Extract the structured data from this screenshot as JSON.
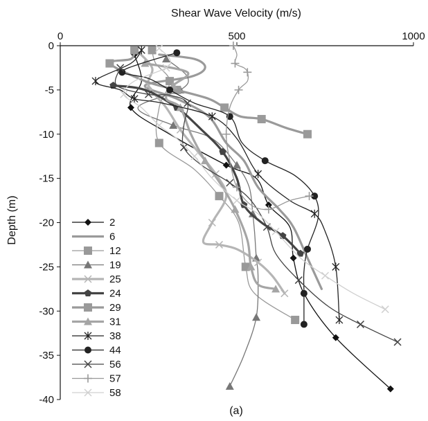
{
  "chart_data": {
    "type": "line",
    "xlabel": "Shear Wave Velocity (m/s)",
    "ylabel": "Depth (m)",
    "caption": "(a)",
    "xlim": [
      0,
      1000
    ],
    "ylim": [
      -40,
      0
    ],
    "xticks": [
      "0",
      "500",
      "1000"
    ],
    "yticks": [
      "0",
      "-5",
      "-10",
      "-15",
      "-20",
      "-25",
      "-30",
      "-35",
      "-40"
    ],
    "series": [
      {
        "name": "2",
        "color": "#111111",
        "marker": "diamond",
        "points": [
          [
            210,
            -1
          ],
          [
            230,
            -4
          ],
          [
            200,
            -7
          ],
          [
            310,
            -10
          ],
          [
            470,
            -13.5
          ],
          [
            555,
            -15
          ],
          [
            590,
            -18
          ],
          [
            650,
            -20.5
          ],
          [
            660,
            -24
          ],
          [
            690,
            -28
          ],
          [
            780,
            -33
          ],
          [
            935,
            -38.8
          ]
        ]
      },
      {
        "name": "6",
        "color": "#9a9a9a",
        "marker": "none",
        "thick": true,
        "points": [
          [
            280,
            -1
          ],
          [
            380,
            -1.5
          ],
          [
            410,
            -2.5
          ],
          [
            370,
            -3.5
          ],
          [
            240,
            -4.5
          ],
          [
            330,
            -6
          ],
          [
            420,
            -8
          ],
          [
            470,
            -11
          ],
          [
            520,
            -13
          ],
          [
            560,
            -16
          ],
          [
            620,
            -18.5
          ],
          [
            660,
            -20.5
          ],
          [
            700,
            -24
          ],
          [
            740,
            -27.5
          ]
        ]
      },
      {
        "name": "12",
        "color": "#999999",
        "marker": "square",
        "points": [
          [
            260,
            -0.5
          ],
          [
            270,
            -2
          ],
          [
            310,
            -4
          ],
          [
            280,
            -7
          ],
          [
            280,
            -11
          ],
          [
            380,
            -14
          ],
          [
            450,
            -17
          ],
          [
            505,
            -20
          ],
          [
            525,
            -25
          ],
          [
            550,
            -28
          ],
          [
            665,
            -31
          ]
        ]
      },
      {
        "name": "19",
        "color": "#777777",
        "marker": "triangle",
        "points": [
          [
            300,
            -1.5
          ],
          [
            360,
            -3.5
          ],
          [
            340,
            -5
          ],
          [
            220,
            -7
          ],
          [
            320,
            -9
          ],
          [
            430,
            -10.5
          ],
          [
            500,
            -13.5
          ],
          [
            535,
            -16
          ],
          [
            545,
            -19
          ],
          [
            550,
            -21
          ],
          [
            555,
            -24
          ],
          [
            560,
            -26
          ],
          [
            555,
            -30.7
          ],
          [
            520,
            -35
          ],
          [
            480,
            -38.5
          ]
        ]
      },
      {
        "name": "25",
        "color": "#b5b5b5",
        "marker": "x",
        "thick": true,
        "points": [
          [
            215,
            -0.5
          ],
          [
            260,
            -2.5
          ],
          [
            250,
            -4.5
          ],
          [
            300,
            -7
          ],
          [
            340,
            -9.5
          ],
          [
            390,
            -12
          ],
          [
            440,
            -14.5
          ],
          [
            470,
            -17
          ],
          [
            430,
            -20
          ],
          [
            405,
            -22.2
          ],
          [
            450,
            -22.5
          ],
          [
            500,
            -23
          ],
          [
            560,
            -24.5
          ],
          [
            600,
            -26
          ],
          [
            635,
            -28
          ]
        ]
      },
      {
        "name": "24",
        "color": "#444444",
        "marker": "pentagon",
        "thick": true,
        "points": [
          [
            150,
            -4.5
          ],
          [
            240,
            -5
          ],
          [
            330,
            -7
          ],
          [
            400,
            -9.5
          ],
          [
            460,
            -12
          ],
          [
            500,
            -15
          ],
          [
            520,
            -18
          ],
          [
            570,
            -20
          ],
          [
            630,
            -21.5
          ],
          [
            680,
            -23.5
          ]
        ]
      },
      {
        "name": "29",
        "color": "#9a9a9a",
        "marker": "square",
        "thick": true,
        "points": [
          [
            210,
            -0.5
          ],
          [
            200,
            -1.5
          ],
          [
            140,
            -2
          ],
          [
            240,
            -4
          ],
          [
            330,
            -5
          ],
          [
            420,
            -6
          ],
          [
            465,
            -7
          ],
          [
            510,
            -8
          ],
          [
            570,
            -8.3
          ],
          [
            640,
            -9.3
          ],
          [
            700,
            -10
          ]
        ]
      },
      {
        "name": "31",
        "color": "#a5a5a5",
        "marker": "triangle",
        "thick": true,
        "points": [
          [
            240,
            -2
          ],
          [
            360,
            -3
          ],
          [
            320,
            -4.5
          ],
          [
            300,
            -6
          ],
          [
            340,
            -7
          ],
          [
            370,
            -10
          ],
          [
            410,
            -13
          ],
          [
            460,
            -16
          ],
          [
            495,
            -18.5
          ],
          [
            530,
            -22
          ],
          [
            540,
            -25
          ],
          [
            560,
            -27
          ],
          [
            610,
            -27.5
          ]
        ]
      },
      {
        "name": "38",
        "color": "#222222",
        "marker": "star",
        "points": [
          [
            230,
            -0.5
          ],
          [
            200,
            -2
          ],
          [
            100,
            -4
          ],
          [
            170,
            -5
          ],
          [
            210,
            -6
          ],
          [
            290,
            -6.5
          ],
          [
            430,
            -8
          ],
          [
            500,
            -10.5
          ],
          [
            560,
            -14.5
          ],
          [
            650,
            -17.5
          ],
          [
            720,
            -19
          ],
          [
            750,
            -21
          ],
          [
            780,
            -25
          ],
          [
            790,
            -31
          ]
        ]
      },
      {
        "name": "44",
        "color": "#222222",
        "marker": "circle",
        "points": [
          [
            330,
            -0.8
          ],
          [
            230,
            -2
          ],
          [
            175,
            -3
          ],
          [
            250,
            -3.7
          ],
          [
            310,
            -5
          ],
          [
            380,
            -6.5
          ],
          [
            480,
            -8
          ],
          [
            515,
            -11
          ],
          [
            580,
            -13
          ],
          [
            665,
            -14.7
          ],
          [
            720,
            -17
          ],
          [
            730,
            -19.5
          ],
          [
            700,
            -23
          ],
          [
            690,
            -25.5
          ],
          [
            690,
            -28
          ],
          [
            690,
            -31.5
          ]
        ]
      },
      {
        "name": "56",
        "color": "#444444",
        "marker": "x",
        "points": [
          [
            170,
            -2.5
          ],
          [
            160,
            -4.5
          ],
          [
            250,
            -5.5
          ],
          [
            310,
            -5.6
          ],
          [
            360,
            -6.5
          ],
          [
            350,
            -9
          ],
          [
            350,
            -11.5
          ],
          [
            400,
            -13.5
          ],
          [
            480,
            -15.5
          ],
          [
            540,
            -17.5
          ],
          [
            585,
            -20.5
          ],
          [
            610,
            -23.5
          ],
          [
            675,
            -26.5
          ],
          [
            760,
            -29.5
          ],
          [
            850,
            -31.5
          ],
          [
            955,
            -33.5
          ]
        ]
      },
      {
        "name": "57",
        "color": "#999999",
        "marker": "plus",
        "points": [
          [
            490,
            0
          ],
          [
            500,
            -1
          ],
          [
            495,
            -2
          ],
          [
            520,
            -2.5
          ],
          [
            530,
            -3
          ],
          [
            530,
            -4
          ],
          [
            505,
            -5
          ],
          [
            480,
            -7
          ],
          [
            470,
            -10
          ],
          [
            480,
            -13
          ],
          [
            500,
            -16
          ],
          [
            540,
            -18
          ],
          [
            590,
            -18.5
          ],
          [
            650,
            -17.5
          ],
          [
            705,
            -17
          ]
        ]
      },
      {
        "name": "58",
        "color": "#d0d0d0",
        "marker": "x",
        "points": [
          [
            280,
            -0.3
          ],
          [
            310,
            -1.5
          ],
          [
            300,
            -2.5
          ],
          [
            210,
            -4
          ],
          [
            180,
            -5.5
          ],
          [
            230,
            -7
          ],
          [
            280,
            -9
          ],
          [
            330,
            -10.5
          ],
          [
            380,
            -12.5
          ],
          [
            430,
            -15
          ],
          [
            500,
            -17.5
          ],
          [
            560,
            -19
          ],
          [
            610,
            -21
          ],
          [
            680,
            -24
          ],
          [
            750,
            -26
          ],
          [
            830,
            -28
          ],
          [
            920,
            -29.8
          ]
        ]
      }
    ]
  }
}
